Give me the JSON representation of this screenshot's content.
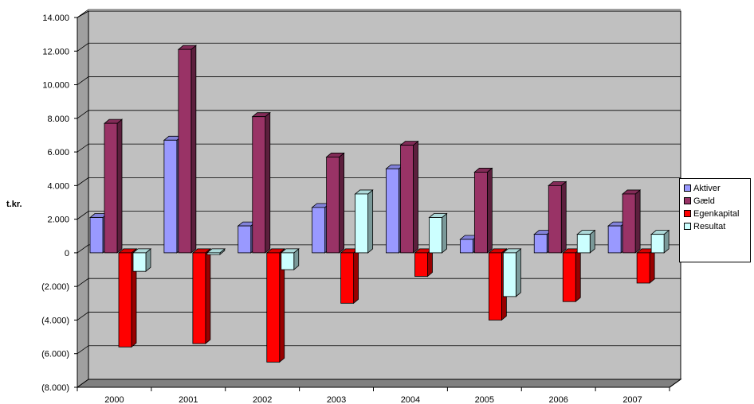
{
  "chart_data": {
    "type": "bar",
    "title": "",
    "xlabel": "",
    "ylabel": "t.kr.",
    "categories": [
      "2000",
      "2001",
      "2002",
      "2003",
      "2004",
      "2005",
      "2006",
      "2007"
    ],
    "series": [
      {
        "name": "Aktiver",
        "color": "#9999FF",
        "values": [
          2100,
          6700,
          1600,
          2700,
          5000,
          800,
          1100,
          1600
        ]
      },
      {
        "name": "Gæld",
        "color": "#993366",
        "values": [
          7700,
          12100,
          8100,
          5700,
          6400,
          4800,
          4000,
          3500
        ]
      },
      {
        "name": "Egenkapital",
        "color": "#FF0000",
        "values": [
          -5600,
          -5400,
          -6500,
          -3000,
          -1400,
          -4000,
          -2900,
          -1800
        ]
      },
      {
        "name": "Resultat",
        "color": "#CCFFFF",
        "values": [
          -1100,
          -100,
          -1000,
          3500,
          2100,
          -2600,
          1100,
          1100
        ]
      }
    ],
    "ylim": [
      -8000,
      14000
    ],
    "yticks": [
      "(8.000)",
      "(6.000)",
      "(4.000)",
      "(2.000)",
      "0",
      "2.000",
      "4.000",
      "6.000",
      "8.000",
      "10.000",
      "12.000",
      "14.000"
    ],
    "ytick_values": [
      -8000,
      -6000,
      -4000,
      -2000,
      0,
      2000,
      4000,
      6000,
      8000,
      10000,
      12000,
      14000
    ],
    "grid": true,
    "legend_position": "right",
    "wall_color": "#C0C0C0",
    "floor_color": "#808080"
  },
  "legend": {
    "items": [
      {
        "label": "Aktiver",
        "color": "#9999FF"
      },
      {
        "label": "Gæld",
        "color": "#993366"
      },
      {
        "label": "Egenkapital",
        "color": "#FF0000"
      },
      {
        "label": "Resultat",
        "color": "#CCFFFF"
      }
    ]
  }
}
